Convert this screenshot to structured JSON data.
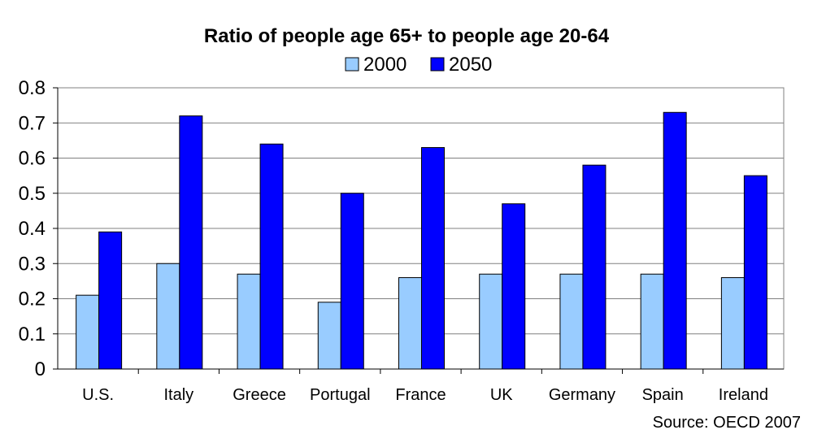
{
  "chart_data": {
    "type": "bar",
    "title": "Ratio of people age 65+ to people age 20-64",
    "categories": [
      "U.S.",
      "Italy",
      "Greece",
      "Portugal",
      "France",
      "UK",
      "Germany",
      "Spain",
      "Ireland"
    ],
    "series": [
      {
        "name": "2000",
        "color": "#99ccff",
        "values": [
          0.21,
          0.3,
          0.27,
          0.19,
          0.26,
          0.27,
          0.27,
          0.27,
          0.26
        ]
      },
      {
        "name": "2050",
        "color": "#0000ff",
        "values": [
          0.39,
          0.72,
          0.64,
          0.5,
          0.63,
          0.47,
          0.58,
          0.73,
          0.55
        ]
      }
    ],
    "ylim": [
      0,
      0.8
    ],
    "yticks": [
      "0",
      "0.1",
      "0.2",
      "0.3",
      "0.4",
      "0.5",
      "0.6",
      "0.7",
      "0.8"
    ],
    "grid": true,
    "legend_position": "top-center",
    "source": "Source: OECD 2007"
  }
}
